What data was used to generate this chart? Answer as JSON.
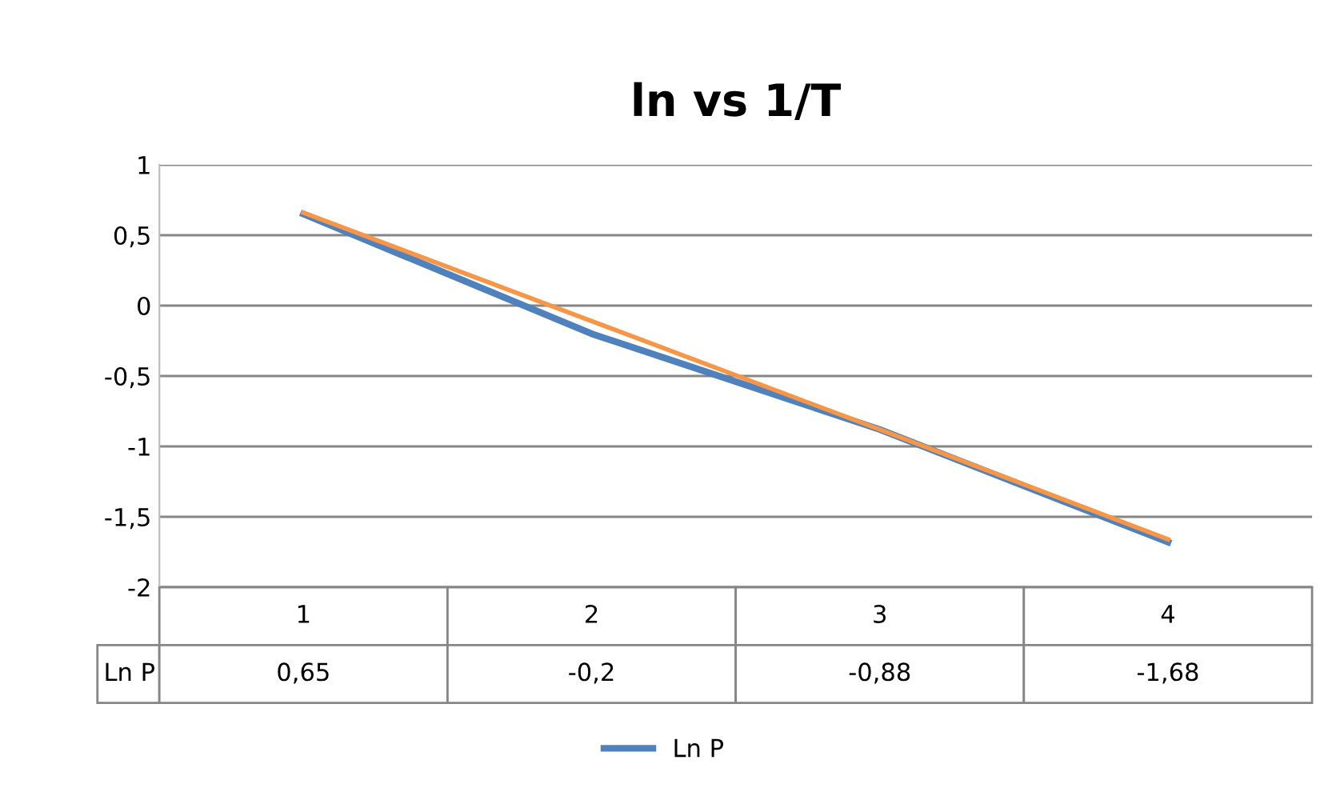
{
  "chart_data": {
    "type": "line",
    "title": "ln vs 1/T",
    "categories": [
      "1",
      "2",
      "3",
      "4"
    ],
    "series": [
      {
        "name": "Ln P",
        "color": "#4f81bd",
        "values": [
          0.65,
          -0.2,
          -0.88,
          -1.68
        ],
        "value_labels": [
          "0,65",
          "-0,2",
          "-0,88",
          "-1,68"
        ]
      },
      {
        "color": "#f79646",
        "values": [
          0.66,
          -0.11,
          -0.88,
          -1.66
        ]
      }
    ],
    "ylim": [
      -2,
      1
    ],
    "yticks": [
      {
        "value": -2,
        "label": "-2"
      },
      {
        "value": -1.5,
        "label": "-1,5"
      },
      {
        "value": -1,
        "label": "-1"
      },
      {
        "value": -0.5,
        "label": "-0,5"
      },
      {
        "value": 0,
        "label": "0"
      },
      {
        "value": 0.5,
        "label": "0,5"
      },
      {
        "value": 1,
        "label": "1"
      }
    ],
    "grid": "y",
    "legend": "bottom",
    "marker": "none",
    "line_style": "solid"
  }
}
